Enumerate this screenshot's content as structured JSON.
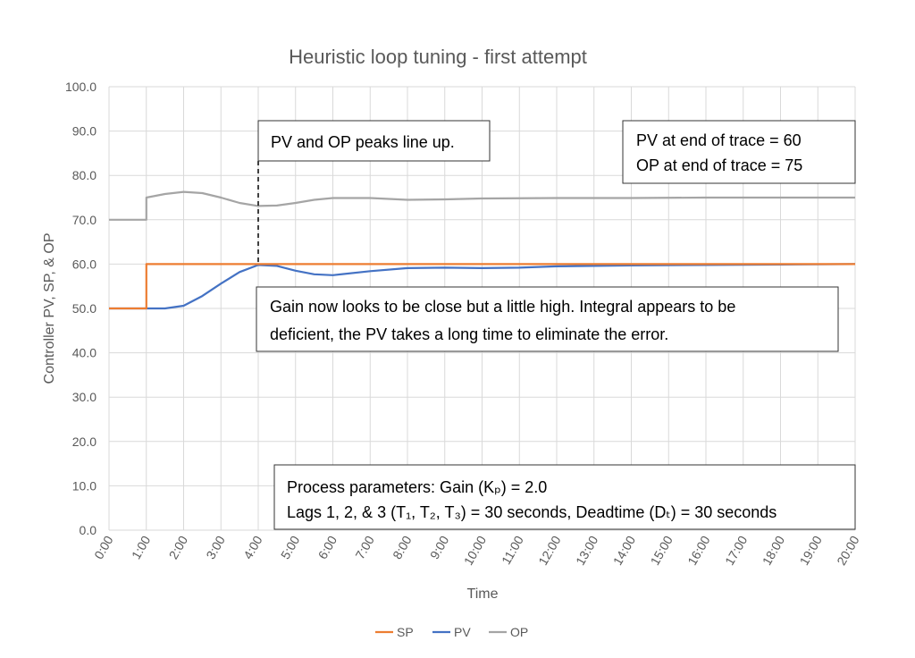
{
  "chart_data": {
    "type": "line",
    "title": "Heuristic loop tuning - first attempt",
    "xlabel": "Time",
    "ylabel": "Controller PV, SP, & OP",
    "xlim": [
      0,
      20
    ],
    "ylim": [
      0,
      100
    ],
    "x_unit": "minutes",
    "x_tick_labels": [
      "0:00",
      "1:00",
      "2:00",
      "3:00",
      "4:00",
      "5:00",
      "6:00",
      "7:00",
      "8:00",
      "9:00",
      "10:00",
      "11:00",
      "12:00",
      "13:00",
      "14:00",
      "15:00",
      "16:00",
      "17:00",
      "18:00",
      "19:00",
      "20:00"
    ],
    "y_tick_labels": [
      "0.0",
      "10.0",
      "20.0",
      "30.0",
      "40.0",
      "50.0",
      "60.0",
      "70.0",
      "80.0",
      "90.0",
      "100.0"
    ],
    "grid": true,
    "legend_position": "bottom",
    "series": [
      {
        "name": "SP",
        "color": "#ED7D31",
        "x": [
          0,
          1,
          1,
          20
        ],
        "y": [
          50,
          50,
          60,
          60
        ]
      },
      {
        "name": "PV",
        "color": "#4472C4",
        "x": [
          0,
          1,
          1.5,
          2,
          2.5,
          3,
          3.5,
          4,
          4.5,
          5,
          5.5,
          6,
          7,
          8,
          9,
          10,
          11,
          12,
          13,
          14,
          16,
          18,
          20
        ],
        "y": [
          50,
          50,
          50,
          50.6,
          52.8,
          55.6,
          58.2,
          59.8,
          59.6,
          58.5,
          57.7,
          57.5,
          58.4,
          59.1,
          59.2,
          59.1,
          59.2,
          59.5,
          59.6,
          59.7,
          59.8,
          59.9,
          60
        ]
      },
      {
        "name": "OP",
        "color": "#A5A5A5",
        "x": [
          0,
          1,
          1,
          1.5,
          2,
          2.5,
          3,
          3.5,
          4,
          4.5,
          5,
          5.5,
          6,
          7,
          8,
          9,
          10,
          12,
          14,
          16,
          18,
          20
        ],
        "y": [
          70,
          70,
          75,
          75.8,
          76.3,
          76,
          75,
          73.8,
          73.1,
          73.2,
          73.8,
          74.5,
          74.9,
          74.9,
          74.5,
          74.6,
          74.8,
          74.9,
          74.9,
          75,
          75,
          75
        ]
      }
    ],
    "annotations": {
      "peaks": "PV and OP peaks line up.",
      "end_pv": "PV at end of trace = 60",
      "end_op": "OP at end of trace = 75",
      "gain_line1": "Gain now looks to be close but a little high.  Integral appears to be",
      "gain_line2": "deficient, the PV takes a long time to eliminate the error.",
      "params_line1": "Process parameters:  Gain (Kₚ) = 2.0",
      "params_line2": "Lags 1, 2, & 3 (T₁, T₂, T₃) = 30 seconds, Deadtime (Dₜ) = 30 seconds"
    }
  }
}
